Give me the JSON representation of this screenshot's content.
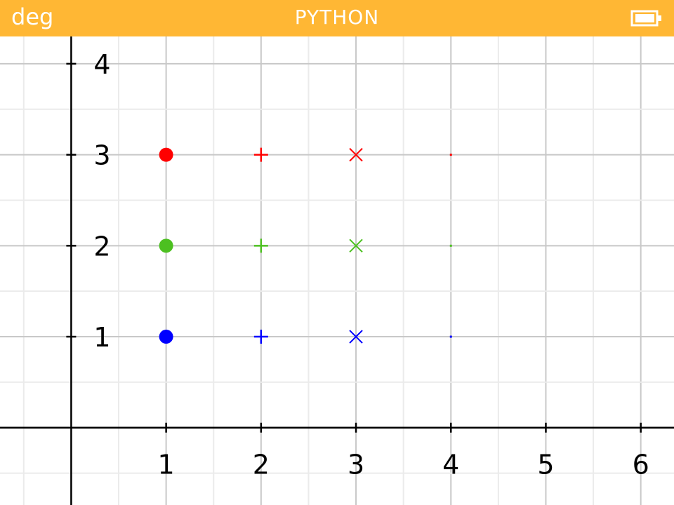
{
  "status_bar": {
    "mode": "deg",
    "title": "PYTHON",
    "color": "#FFB734",
    "battery_icon": "battery-full-icon"
  },
  "chart_data": {
    "type": "scatter",
    "title": "",
    "xlabel": "",
    "ylabel": "",
    "xlim": [
      -0.75,
      6.35
    ],
    "ylim": [
      -0.85,
      4.3
    ],
    "grid": true,
    "x_ticks": [
      1,
      2,
      3,
      4,
      5,
      6
    ],
    "y_ticks": [
      1,
      2,
      3,
      4
    ],
    "series": [
      {
        "color": "#0000FF",
        "points": [
          {
            "x": 1,
            "y": 1,
            "marker": "o"
          },
          {
            "x": 2,
            "y": 1,
            "marker": "+"
          },
          {
            "x": 3,
            "y": 1,
            "marker": "x"
          },
          {
            "x": 4,
            "y": 1,
            "marker": "."
          }
        ]
      },
      {
        "color": "#4CC020",
        "points": [
          {
            "x": 1,
            "y": 2,
            "marker": "o"
          },
          {
            "x": 2,
            "y": 2,
            "marker": "+"
          },
          {
            "x": 3,
            "y": 2,
            "marker": "x"
          },
          {
            "x": 4,
            "y": 2,
            "marker": "."
          }
        ]
      },
      {
        "color": "#FF0000",
        "points": [
          {
            "x": 1,
            "y": 3,
            "marker": "o"
          },
          {
            "x": 2,
            "y": 3,
            "marker": "+"
          },
          {
            "x": 3,
            "y": 3,
            "marker": "x"
          },
          {
            "x": 4,
            "y": 3,
            "marker": "."
          }
        ]
      }
    ]
  }
}
